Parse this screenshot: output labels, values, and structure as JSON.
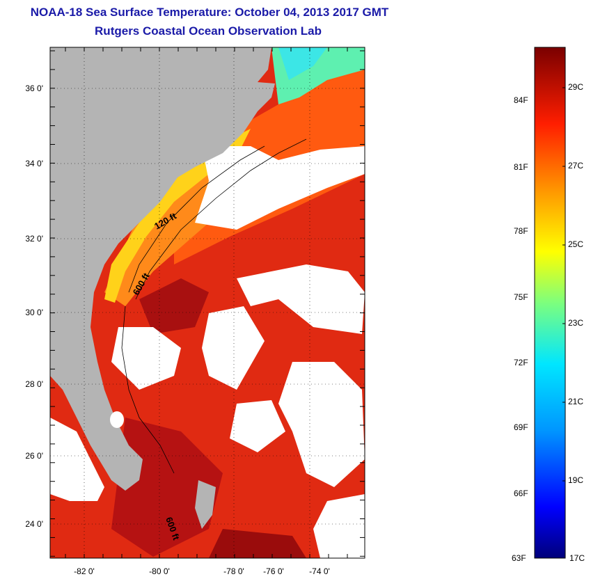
{
  "header": {
    "title": "NOAA-18 Sea Surface Temperature:  October 04, 2013 2017 GMT",
    "subtitle": "Rutgers Coastal Ocean Observation Lab"
  },
  "map": {
    "lat_labels": [
      "36 0'",
      "34 0'",
      "32 0'",
      "30 0'",
      "28 0'",
      "26 0'",
      "24 0'"
    ],
    "lon_labels": [
      "-82 0'",
      "-80 0'",
      "-78 0'",
      "-76 0'",
      "-74 0'"
    ],
    "isobaths": [
      "120 ft",
      "600 ft",
      "600 ft"
    ],
    "colors": {
      "land": "#b4b4b4",
      "cloud": "#ffffff"
    }
  },
  "colorbar": {
    "fahrenheit": [
      "84F",
      "81F",
      "78F",
      "75F",
      "72F",
      "69F",
      "66F",
      "63F"
    ],
    "celsius": [
      "29C",
      "27C",
      "25C",
      "23C",
      "21C",
      "19C",
      "17C"
    ]
  }
}
